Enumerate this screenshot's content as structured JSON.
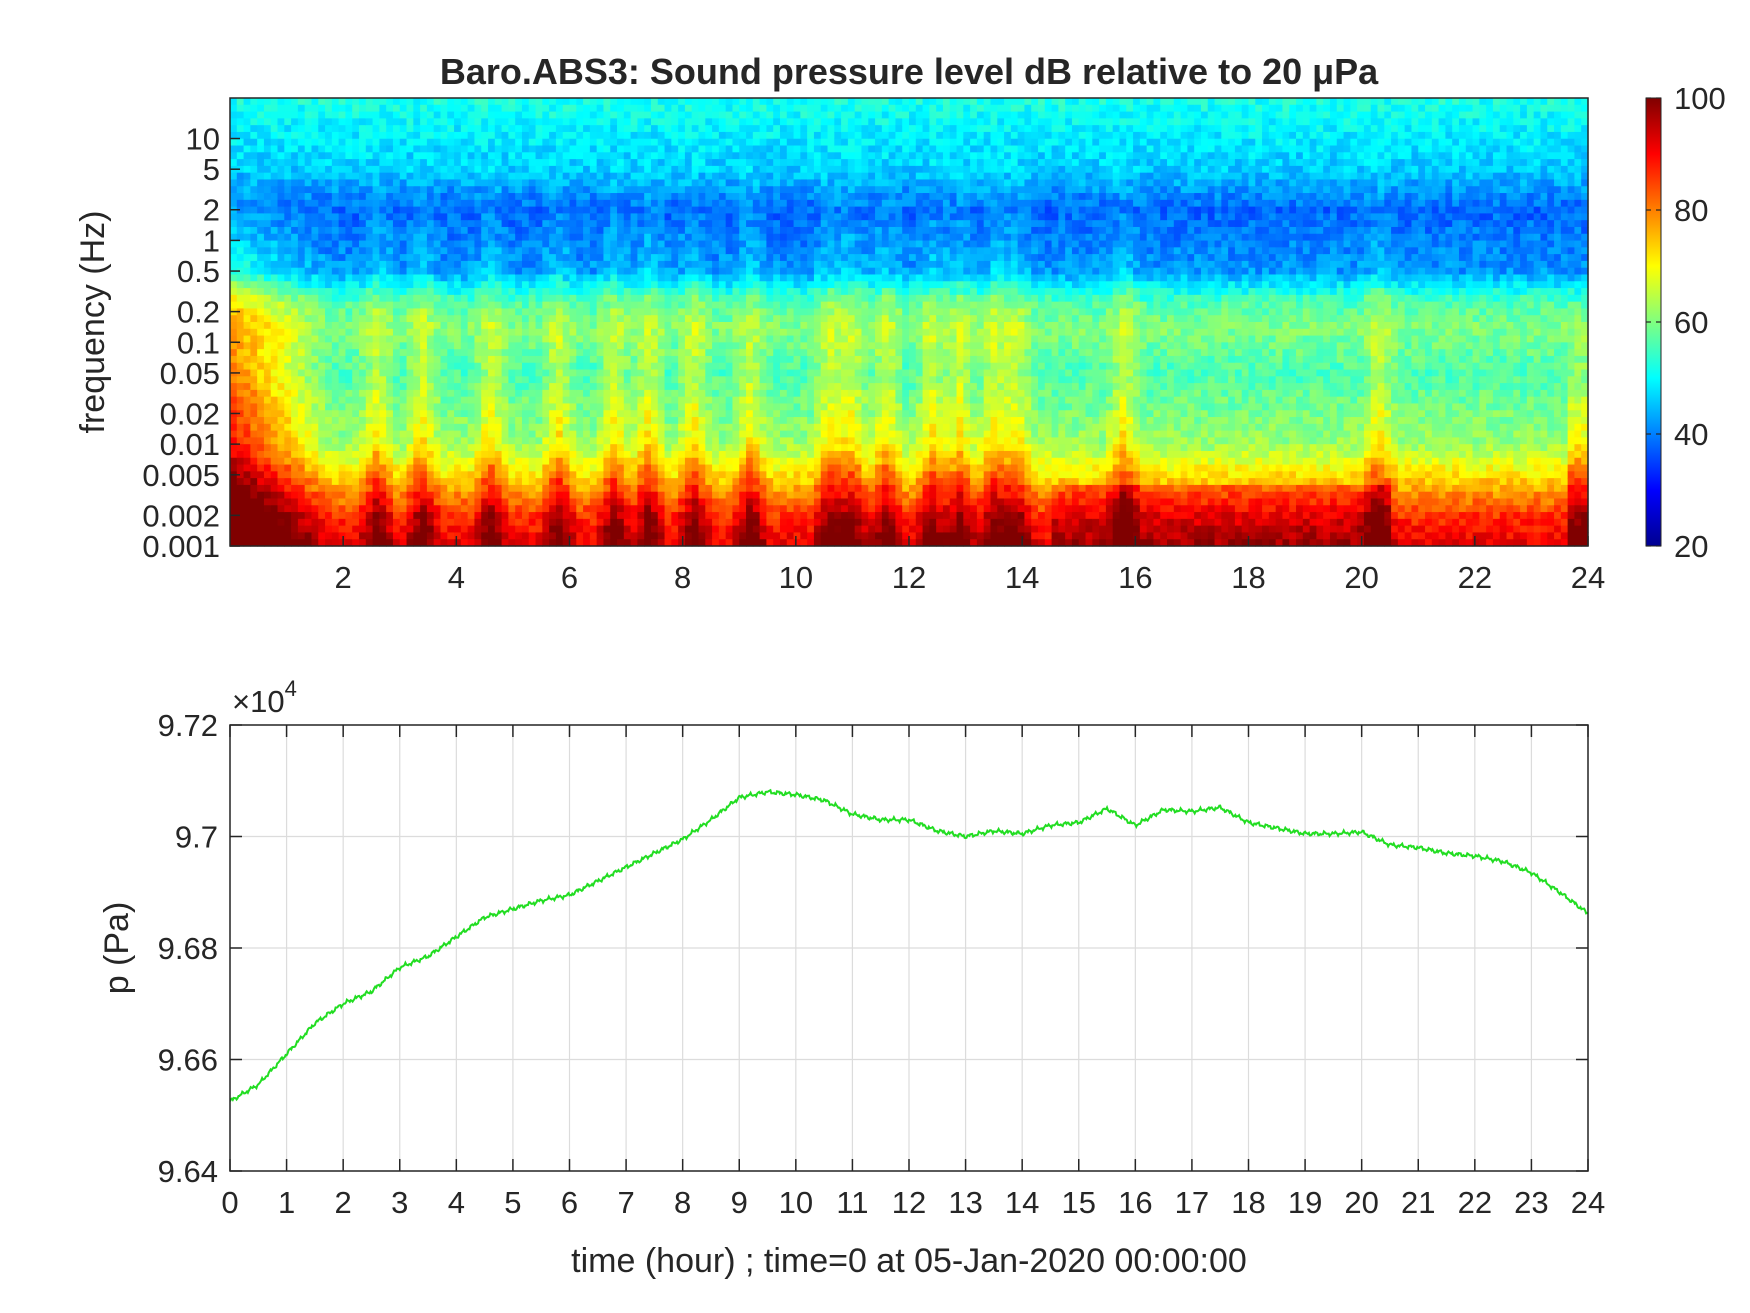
{
  "chart_data": [
    {
      "type": "heatmap",
      "title": "Baro.ABS3: Sound pressure level dB relative to 20 μPa",
      "ylabel": "frequency (Hz)",
      "xlabel": "",
      "xlim": [
        0,
        24
      ],
      "x_ticks": [
        "2",
        "4",
        "6",
        "8",
        "10",
        "12",
        "14",
        "16",
        "18",
        "20",
        "22",
        "24"
      ],
      "y_scale": "log",
      "ylim": [
        0.001,
        25
      ],
      "y_ticks": [
        "10",
        "5",
        "2",
        "1",
        "0.5",
        "0.2",
        "0.1",
        "0.05",
        "0.02",
        "0.01",
        "0.005",
        "0.002",
        "0.001"
      ],
      "colorbar": {
        "range": [
          20,
          100
        ],
        "ticks": [
          "100",
          "80",
          "60",
          "40",
          "20"
        ],
        "colormap": "jet"
      },
      "spike_hours": [
        2.6,
        3.4,
        4.6,
        5.8,
        6.8,
        7.4,
        8.2,
        9.2,
        10.6,
        11.0,
        11.6,
        12.4,
        12.9,
        13.5,
        13.9,
        15.8,
        20.3
      ],
      "grid": false,
      "legend": "none"
    },
    {
      "type": "line",
      "xlabel": "time (hour) ; time=0 at 05-Jan-2020 00:00:00",
      "ylabel": "p (Pa)",
      "exponent_label": "×10",
      "exponent_power": "4",
      "xlim": [
        0,
        24
      ],
      "ylim": [
        96400,
        97200
      ],
      "x_ticks": [
        "0",
        "1",
        "2",
        "3",
        "4",
        "5",
        "6",
        "7",
        "8",
        "9",
        "10",
        "11",
        "12",
        "13",
        "14",
        "15",
        "16",
        "17",
        "18",
        "19",
        "20",
        "21",
        "22",
        "23",
        "24"
      ],
      "y_ticks": [
        "9.72",
        "9.7",
        "9.68",
        "9.66",
        "9.64"
      ],
      "y_tick_values": [
        97200,
        97000,
        96800,
        96600,
        96400
      ],
      "grid": true,
      "legend": "none",
      "line_color": "#22dd22",
      "x": [
        0,
        0.5,
        1,
        1.5,
        2,
        2.5,
        3,
        3.5,
        4,
        4.5,
        5,
        5.5,
        6,
        6.5,
        7,
        7.5,
        8,
        8.5,
        9,
        9.5,
        10,
        10.5,
        11,
        11.5,
        12,
        12.5,
        13,
        13.5,
        14,
        14.5,
        15,
        15.5,
        16,
        16.5,
        17,
        17.5,
        18,
        18.5,
        19,
        19.5,
        20,
        20.5,
        21,
        21.5,
        22,
        22.5,
        23,
        23.5,
        24
      ],
      "values": [
        96525,
        96555,
        96610,
        96665,
        96700,
        96722,
        96765,
        96785,
        96820,
        96855,
        96870,
        96885,
        96895,
        96920,
        96945,
        96970,
        96995,
        97030,
        97070,
        97080,
        97075,
        97065,
        97040,
        97030,
        97030,
        97010,
        97000,
        97010,
        97005,
        97020,
        97025,
        97050,
        97020,
        97048,
        97045,
        97052,
        97025,
        97015,
        97005,
        97005,
        97008,
        96985,
        96980,
        96970,
        96965,
        96955,
        96935,
        96900,
        96862
      ]
    }
  ]
}
